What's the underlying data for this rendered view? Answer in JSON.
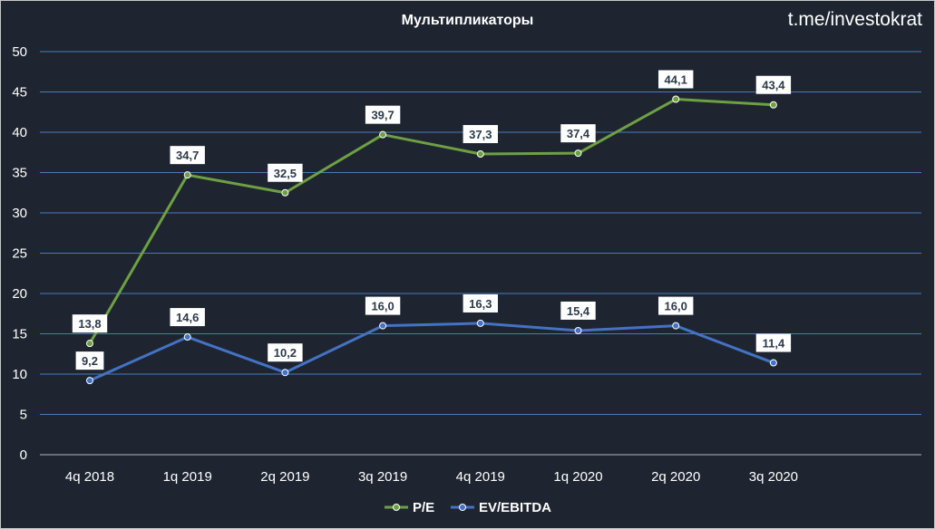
{
  "watermark": "t.me/investokrat",
  "chart_data": {
    "type": "line",
    "title": "Мультипликаторы",
    "xlabel": "",
    "ylabel": "",
    "categories": [
      "4q 2018",
      "1q 2019",
      "2q 2019",
      "3q 2019",
      "4q 2019",
      "1q 2020",
      "2q 2020",
      "3q 2020"
    ],
    "ylim": [
      0,
      50
    ],
    "yticks": [
      0,
      5,
      10,
      15,
      20,
      25,
      30,
      35,
      40,
      45,
      50
    ],
    "grid": true,
    "legend_position": "bottom",
    "series": [
      {
        "name": "P/E",
        "color": "#6ea043",
        "values": [
          13.8,
          34.7,
          32.5,
          39.7,
          37.3,
          37.4,
          44.1,
          43.4
        ],
        "labels": [
          "13,8",
          "34,7",
          "32,5",
          "39,7",
          "37,3",
          "37,4",
          "44,1",
          "43,4"
        ]
      },
      {
        "name": "EV/EBITDA",
        "color": "#4472c4",
        "values": [
          9.2,
          14.6,
          10.2,
          16.0,
          16.3,
          15.4,
          16.0,
          11.4
        ],
        "labels": [
          "9,2",
          "14,6",
          "10,2",
          "16,0",
          "16,3",
          "15,4",
          "16,0",
          "11,4"
        ]
      }
    ]
  }
}
